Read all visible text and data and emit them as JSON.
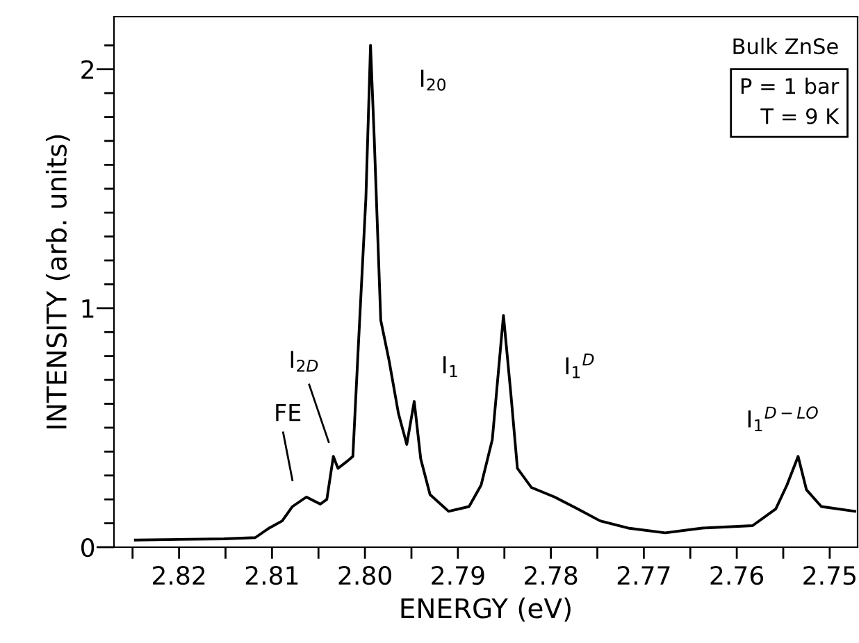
{
  "chart_data": {
    "type": "line",
    "xlabel": "ENERGY (eV)",
    "ylabel": "INTENSITY (arb. units)",
    "x": [
      2.8247,
      2.8152,
      2.8118,
      2.8103,
      2.8089,
      2.8078,
      2.8063,
      2.8048,
      2.8041,
      2.8034,
      2.8029,
      2.8019,
      2.8013,
      2.8007,
      2.7999,
      2.7994,
      2.799,
      2.7983,
      2.7974,
      2.7964,
      2.7955,
      2.7947,
      2.794,
      2.793,
      2.791,
      2.7888,
      2.7875,
      2.7863,
      2.7851,
      2.7843,
      2.7836,
      2.7821,
      2.7796,
      2.7771,
      2.7747,
      2.7717,
      2.7677,
      2.7637,
      2.7583,
      2.7558,
      2.7546,
      2.7534,
      2.7525,
      2.7509,
      2.7473
    ],
    "series": [
      {
        "color": "#000000",
        "values": [
          0.03,
          0.035,
          0.04,
          0.08,
          0.11,
          0.17,
          0.21,
          0.18,
          0.2,
          0.38,
          0.33,
          0.36,
          0.38,
          0.85,
          1.46,
          2.1,
          1.71,
          0.95,
          0.78,
          0.56,
          0.43,
          0.61,
          0.37,
          0.22,
          0.15,
          0.17,
          0.26,
          0.45,
          0.97,
          0.64,
          0.33,
          0.25,
          0.21,
          0.16,
          0.11,
          0.08,
          0.06,
          0.08,
          0.09,
          0.16,
          0.26,
          0.38,
          0.24,
          0.17,
          0.15
        ]
      }
    ],
    "xlim": [
      2.827,
      2.747
    ],
    "ylim": [
      0,
      2.22
    ],
    "xticks": [
      {
        "value": 2.825,
        "label": null
      },
      2.82,
      {
        "value": 2.815,
        "label": null
      },
      2.81,
      {
        "value": 2.805,
        "label": null
      },
      {
        "value": 2.8,
        "label": "2.80"
      },
      {
        "value": 2.795,
        "label": null
      },
      2.79,
      {
        "value": 2.785,
        "label": null
      },
      2.78,
      {
        "value": 2.775,
        "label": null
      },
      2.77,
      {
        "value": 2.765,
        "label": null
      },
      2.76,
      {
        "value": 2.755,
        "label": null
      },
      2.75
    ],
    "yticks": [
      0,
      {
        "value": 0.1,
        "label": null
      },
      {
        "value": 0.2,
        "label": null
      },
      {
        "value": 0.3,
        "label": null
      },
      {
        "value": 0.4,
        "label": null
      },
      {
        "value": 0.5,
        "label": null
      },
      {
        "value": 0.6,
        "label": null
      },
      {
        "value": 0.7,
        "label": null
      },
      {
        "value": 0.8,
        "label": null
      },
      {
        "value": 0.9,
        "label": null
      },
      1,
      {
        "value": 1.1,
        "label": null
      },
      {
        "value": 1.2,
        "label": null
      },
      {
        "value": 1.3,
        "label": null
      },
      {
        "value": 1.4,
        "label": null
      },
      {
        "value": 1.5,
        "label": null
      },
      {
        "value": 1.6,
        "label": null
      },
      {
        "value": 1.7,
        "label": null
      },
      {
        "value": 1.8,
        "label": null
      },
      {
        "value": 1.9,
        "label": null
      },
      2,
      {
        "value": 2.1,
        "label": null
      }
    ],
    "grid": false,
    "legend": false,
    "marker": "none",
    "line_style": "solid",
    "annotations": [
      "Bulk ZnSe",
      "P = 1 bar\nT = 9 K",
      "I$_{20}$",
      "I$_{2D}$",
      "FE",
      "I$_{1}$",
      "I$_{1}$$^{D}$",
      "I$_{1}$$^{D−LO}$"
    ]
  }
}
